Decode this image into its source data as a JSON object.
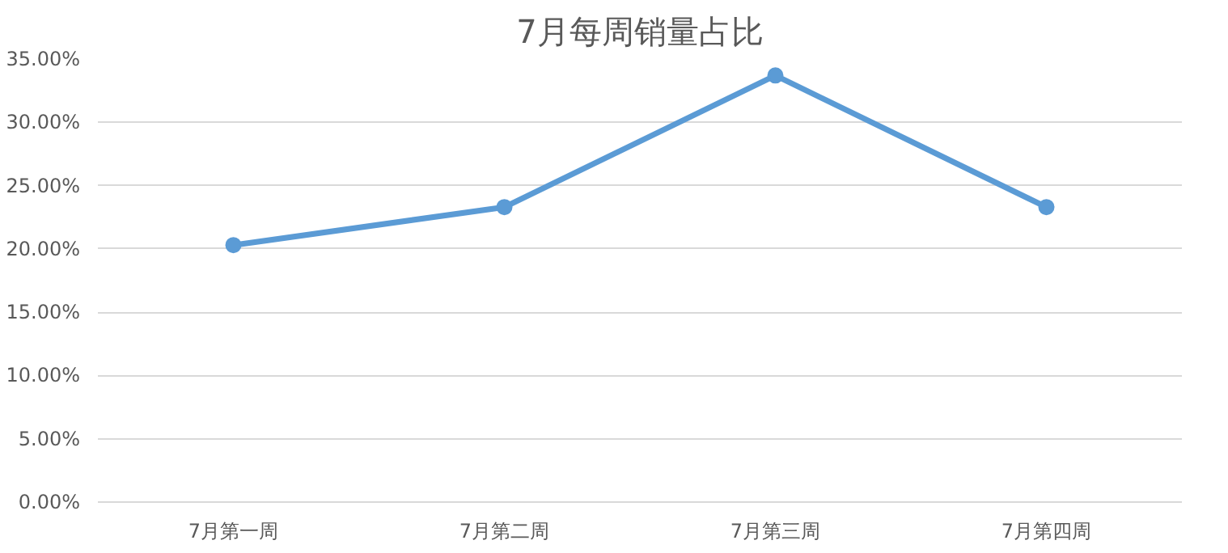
{
  "chart_data": {
    "type": "line",
    "title": "7月每周销量占比",
    "categories": [
      "7月第一周",
      "7月第二周",
      "7月第三周",
      "7月第四周"
    ],
    "series": [
      {
        "color": "#5b9bd5",
        "values": [
          20.3,
          23.3,
          33.7,
          23.3
        ]
      }
    ],
    "ylim": [
      0,
      35
    ],
    "yticks": [
      {
        "value": 0,
        "label": "0.00%"
      },
      {
        "value": 5,
        "label": "5.00%"
      },
      {
        "value": 10,
        "label": "10.00%"
      },
      {
        "value": 15,
        "label": "15.00%"
      },
      {
        "value": 20,
        "label": "20.00%"
      },
      {
        "value": 25,
        "label": "25.00%"
      },
      {
        "value": 30,
        "label": "30.00%"
      },
      {
        "value": 35,
        "label": "35.00%"
      }
    ],
    "grid": "y",
    "marker": "circle",
    "line_style": "solid"
  }
}
